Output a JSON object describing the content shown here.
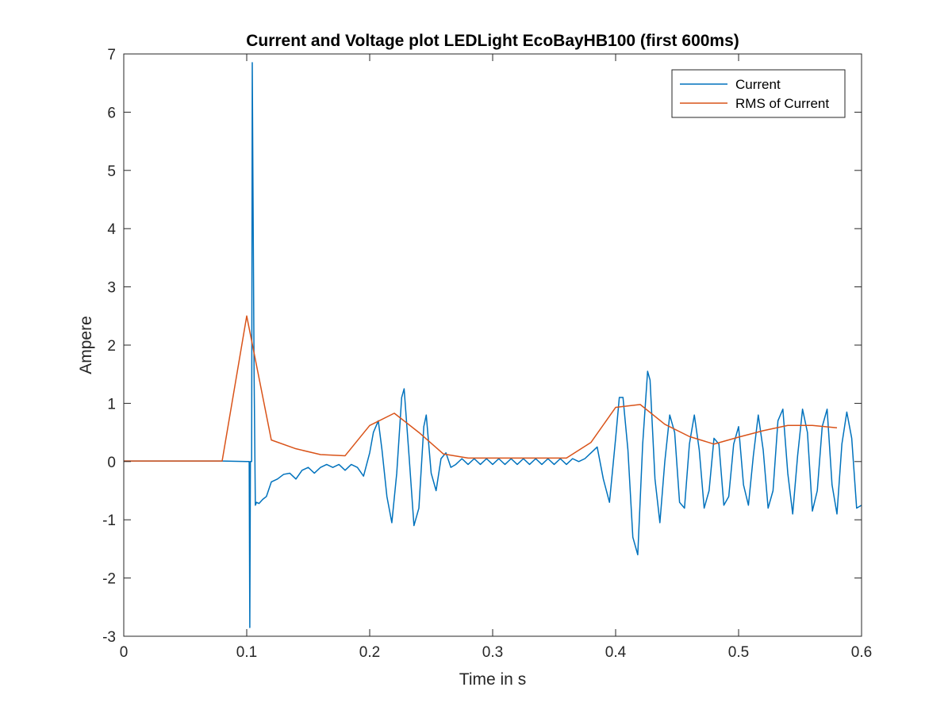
{
  "chart_data": {
    "type": "line",
    "title": "Current and Voltage plot LEDLight EcoBayHB100 (first 600ms)",
    "xlabel": "Time in s",
    "ylabel": "Ampere",
    "xlim": [
      0,
      0.6
    ],
    "ylim": [
      -3,
      7
    ],
    "xticks": [
      0,
      0.1,
      0.2,
      0.3,
      0.4,
      0.5,
      0.6
    ],
    "xtick_labels": [
      "0",
      "0.1",
      "0.2",
      "0.3",
      "0.4",
      "0.5",
      "0.6"
    ],
    "yticks": [
      -3,
      -2,
      -1,
      0,
      1,
      2,
      3,
      4,
      5,
      6,
      7
    ],
    "ytick_labels": [
      "-3",
      "-2",
      "-1",
      "0",
      "1",
      "2",
      "3",
      "4",
      "5",
      "6",
      "7"
    ],
    "grid": false,
    "legend_position": "top-right",
    "series": [
      {
        "name": "Current",
        "color": "#0072BD",
        "x": [
          0,
          0.04,
          0.08,
          0.1,
          0.102,
          0.1025,
          0.103,
          0.104,
          0.1045,
          0.105,
          0.106,
          0.107,
          0.108,
          0.11,
          0.113,
          0.116,
          0.12,
          0.125,
          0.13,
          0.135,
          0.14,
          0.145,
          0.15,
          0.155,
          0.16,
          0.165,
          0.17,
          0.175,
          0.18,
          0.185,
          0.19,
          0.195,
          0.2,
          0.203,
          0.207,
          0.21,
          0.214,
          0.218,
          0.222,
          0.226,
          0.228,
          0.232,
          0.236,
          0.24,
          0.244,
          0.246,
          0.25,
          0.254,
          0.258,
          0.262,
          0.266,
          0.27,
          0.275,
          0.28,
          0.285,
          0.29,
          0.295,
          0.3,
          0.305,
          0.31,
          0.315,
          0.32,
          0.325,
          0.33,
          0.335,
          0.34,
          0.345,
          0.35,
          0.355,
          0.36,
          0.365,
          0.37,
          0.375,
          0.38,
          0.385,
          0.39,
          0.395,
          0.4,
          0.403,
          0.406,
          0.41,
          0.414,
          0.418,
          0.422,
          0.426,
          0.428,
          0.432,
          0.436,
          0.44,
          0.444,
          0.448,
          0.452,
          0.456,
          0.46,
          0.464,
          0.468,
          0.472,
          0.476,
          0.48,
          0.484,
          0.488,
          0.492,
          0.496,
          0.5,
          0.504,
          0.508,
          0.512,
          0.516,
          0.52,
          0.524,
          0.528,
          0.532,
          0.536,
          0.54,
          0.544,
          0.548,
          0.552,
          0.556,
          0.56,
          0.564,
          0.568,
          0.572,
          0.576,
          0.58,
          0.584,
          0.588,
          0.592,
          0.596,
          0.6
        ],
        "values": [
          0.01,
          0.01,
          0.01,
          0.0,
          0.0,
          -2.85,
          0.0,
          0.0,
          6.85,
          5.0,
          1.5,
          -0.75,
          -0.7,
          -0.72,
          -0.65,
          -0.6,
          -0.35,
          -0.3,
          -0.22,
          -0.2,
          -0.3,
          -0.15,
          -0.1,
          -0.2,
          -0.1,
          -0.05,
          -0.1,
          -0.05,
          -0.15,
          -0.05,
          -0.1,
          -0.25,
          0.15,
          0.5,
          0.7,
          0.2,
          -0.6,
          -1.05,
          -0.2,
          1.1,
          1.25,
          0.1,
          -1.1,
          -0.8,
          0.6,
          0.8,
          -0.2,
          -0.5,
          0.05,
          0.15,
          -0.1,
          -0.05,
          0.05,
          -0.05,
          0.05,
          -0.05,
          0.05,
          -0.05,
          0.05,
          -0.05,
          0.05,
          -0.05,
          0.05,
          -0.05,
          0.05,
          -0.05,
          0.05,
          -0.05,
          0.05,
          -0.05,
          0.05,
          0.0,
          0.05,
          0.15,
          0.25,
          -0.3,
          -0.7,
          0.4,
          1.1,
          1.1,
          0.2,
          -1.3,
          -1.6,
          0.3,
          1.55,
          1.4,
          -0.3,
          -1.05,
          0.0,
          0.8,
          0.5,
          -0.7,
          -0.8,
          0.3,
          0.8,
          0.2,
          -0.8,
          -0.5,
          0.4,
          0.3,
          -0.75,
          -0.6,
          0.3,
          0.6,
          -0.4,
          -0.75,
          0.1,
          0.8,
          0.2,
          -0.8,
          -0.5,
          0.7,
          0.9,
          -0.2,
          -0.9,
          0.1,
          0.9,
          0.5,
          -0.85,
          -0.5,
          0.6,
          0.9,
          -0.4,
          -0.9,
          0.3,
          0.85,
          0.4,
          -0.8,
          -0.75
        ]
      },
      {
        "name": "RMS of Current",
        "color": "#D95319",
        "x": [
          0,
          0.02,
          0.04,
          0.06,
          0.08,
          0.1,
          0.12,
          0.14,
          0.16,
          0.18,
          0.2,
          0.22,
          0.24,
          0.26,
          0.28,
          0.3,
          0.32,
          0.34,
          0.36,
          0.38,
          0.4,
          0.42,
          0.44,
          0.46,
          0.48,
          0.5,
          0.52,
          0.54,
          0.56,
          0.58
        ],
        "values": [
          0.01,
          0.01,
          0.01,
          0.01,
          0.01,
          2.5,
          0.37,
          0.22,
          0.12,
          0.1,
          0.62,
          0.83,
          0.5,
          0.13,
          0.06,
          0.06,
          0.06,
          0.06,
          0.06,
          0.33,
          0.93,
          0.98,
          0.64,
          0.43,
          0.3,
          0.42,
          0.53,
          0.62,
          0.62,
          0.58
        ]
      }
    ]
  }
}
